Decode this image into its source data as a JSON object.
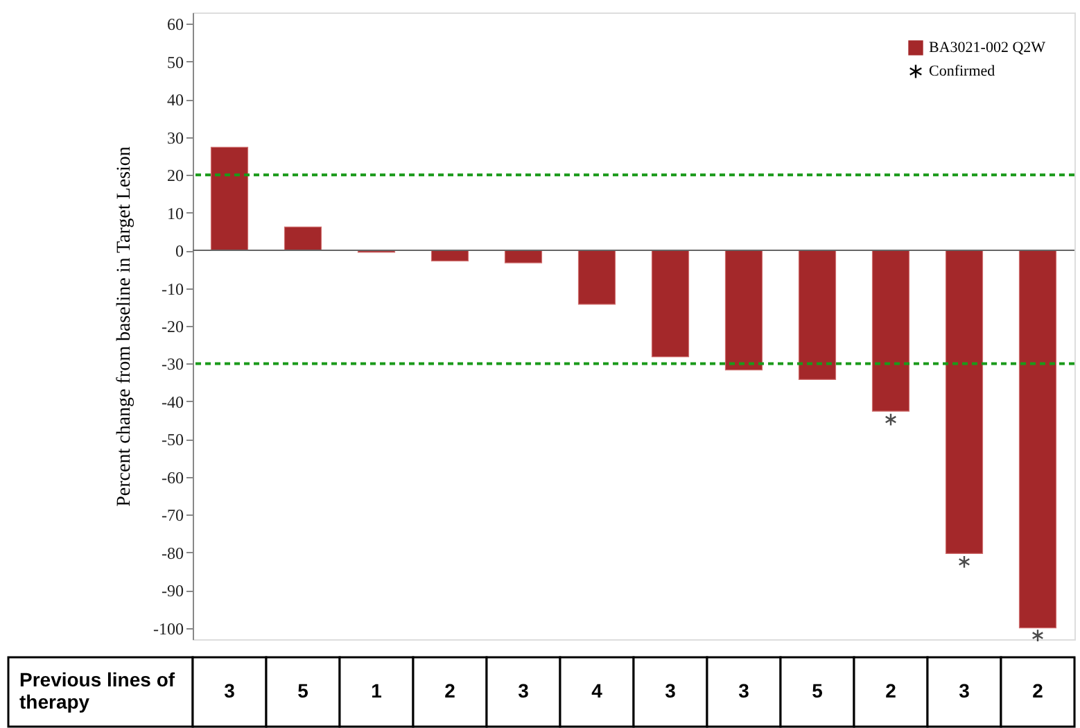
{
  "chart_data": {
    "type": "bar",
    "xlabel": "Previous lines of therapy",
    "ylabel": "Percent change from baseline in Target Lesion",
    "categories": [
      "3",
      "5",
      "1",
      "2",
      "3",
      "4",
      "3",
      "3",
      "5",
      "2",
      "3",
      "2"
    ],
    "series": [
      {
        "name": "BA3021-002 Q2W",
        "color": "#a4282a",
        "values": [
          27.3,
          6.2,
          -0.5,
          -2.8,
          -3.3,
          -14.3,
          -28.2,
          -31.7,
          -34.2,
          -42.6,
          -80.3,
          -100.0
        ]
      },
      {
        "name": "Confirmed",
        "type": "scatter",
        "marker": "cross",
        "color": "#000000",
        "values": [
          null,
          null,
          null,
          null,
          null,
          null,
          null,
          null,
          null,
          -44.8,
          -82.5,
          -102.0
        ]
      }
    ],
    "ylim": [
      -103,
      63
    ],
    "yticks": [
      -100,
      -90,
      -80,
      -70,
      -60,
      -50,
      -40,
      -30,
      -20,
      -10,
      0,
      10,
      20,
      30,
      40,
      50,
      60
    ],
    "ref_lines": [
      {
        "axis": "y",
        "value": 20,
        "color": "#1a9a1a",
        "line_style": "dashed"
      },
      {
        "axis": "y",
        "value": -30,
        "color": "#1a9a1a",
        "line_style": "dashed"
      }
    ],
    "grid": false,
    "legend": "top right"
  }
}
